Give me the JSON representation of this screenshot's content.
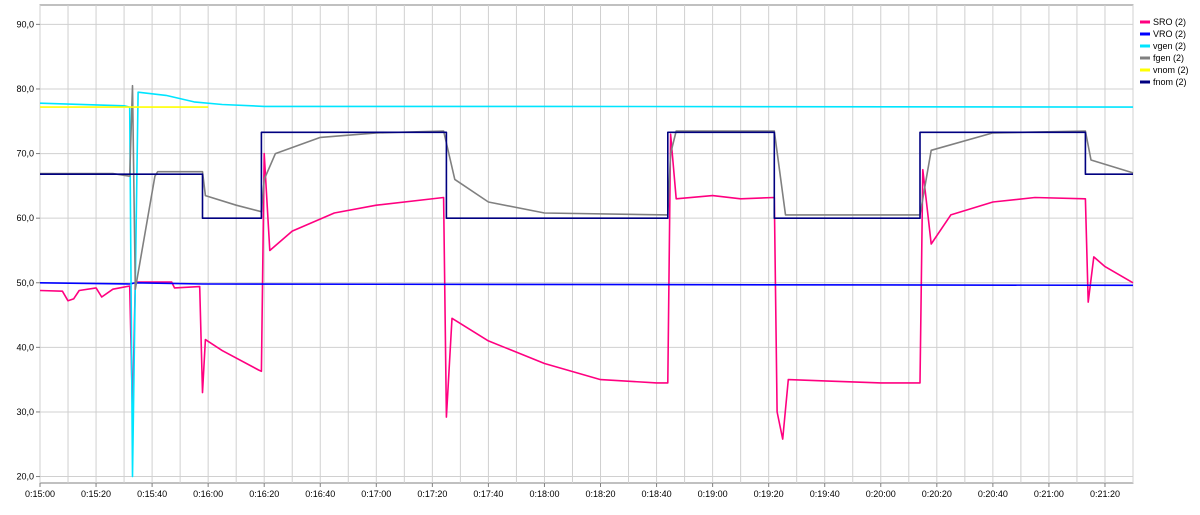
{
  "chart_data": {
    "type": "line",
    "xlim": [
      "0:15:00",
      "0:21:30"
    ],
    "ylim": [
      19,
      93
    ],
    "grid": true,
    "legend_position": "top-right",
    "x_tick_labels": [
      "0:15:00",
      "0:15:20",
      "0:15:40",
      "0:16:00",
      "0:16:20",
      "0:16:40",
      "0:17:00",
      "0:17:20",
      "0:17:40",
      "0:18:00",
      "0:18:20",
      "0:18:40",
      "0:19:00",
      "0:19:20",
      "0:19:40",
      "0:20:00",
      "0:20:20",
      "0:20:40",
      "0:21:00",
      "0:21:20"
    ],
    "y_tick_labels": [
      "20,0",
      "30,0",
      "40,0",
      "50,0",
      "60,0",
      "70,0",
      "80,0",
      "90,0"
    ],
    "series": [
      {
        "name": "SRO (2)",
        "color": "#ff0080",
        "points": [
          [
            "0:15:00",
            48.8
          ],
          [
            "0:15:08",
            48.7
          ],
          [
            "0:15:10",
            47.2
          ],
          [
            "0:15:12",
            47.5
          ],
          [
            "0:15:14",
            48.8
          ],
          [
            "0:15:20",
            49.2
          ],
          [
            "0:15:22",
            47.8
          ],
          [
            "0:15:26",
            49.0
          ],
          [
            "0:15:32",
            49.5
          ],
          [
            "0:15:33",
            30
          ],
          [
            "0:15:34",
            50.1
          ],
          [
            "0:15:47",
            50.1
          ],
          [
            "0:15:48",
            49.2
          ],
          [
            "0:15:57",
            49.4
          ],
          [
            "0:15:58",
            33.0
          ],
          [
            "0:15:59",
            41.2
          ],
          [
            "0:16:05",
            39.5
          ],
          [
            "0:16:18",
            36.5
          ],
          [
            "0:16:19",
            36.3
          ],
          [
            "0:16:20",
            70.0
          ],
          [
            "0:16:22",
            55.0
          ],
          [
            "0:16:30",
            58.0
          ],
          [
            "0:16:45",
            60.8
          ],
          [
            "0:17:00",
            62.0
          ],
          [
            "0:17:24",
            63.2
          ],
          [
            "0:17:25",
            29.2
          ],
          [
            "0:17:27",
            44.5
          ],
          [
            "0:17:40",
            41.0
          ],
          [
            "0:18:00",
            37.5
          ],
          [
            "0:18:20",
            35.0
          ],
          [
            "0:18:40",
            34.5
          ],
          [
            "0:18:44",
            34.5
          ],
          [
            "0:18:45",
            73.0
          ],
          [
            "0:18:47",
            63.0
          ],
          [
            "0:19:00",
            63.5
          ],
          [
            "0:19:10",
            63.0
          ],
          [
            "0:19:22",
            63.2
          ],
          [
            "0:19:23",
            30.0
          ],
          [
            "0:19:25",
            25.8
          ],
          [
            "0:19:27",
            35.0
          ],
          [
            "0:19:40",
            34.8
          ],
          [
            "0:20:00",
            34.5
          ],
          [
            "0:20:14",
            34.5
          ],
          [
            "0:20:15",
            67.5
          ],
          [
            "0:20:18",
            56.0
          ],
          [
            "0:20:25",
            60.5
          ],
          [
            "0:20:40",
            62.5
          ],
          [
            "0:20:55",
            63.2
          ],
          [
            "0:21:13",
            63.0
          ],
          [
            "0:21:14",
            47.0
          ],
          [
            "0:21:16",
            54.0
          ],
          [
            "0:21:20",
            52.5
          ],
          [
            "0:21:30",
            50.0
          ]
        ]
      },
      {
        "name": "VRO (2)",
        "color": "#0000ff",
        "points": [
          [
            "0:15:00",
            50.0
          ],
          [
            "0:15:32",
            49.8
          ],
          [
            "0:15:34",
            50.0
          ],
          [
            "0:15:58",
            49.8
          ],
          [
            "0:21:30",
            49.6
          ]
        ]
      },
      {
        "name": "vgen (2)",
        "color": "#00e5ff",
        "points": [
          [
            "0:15:00",
            77.8
          ],
          [
            "0:15:30",
            77.4
          ],
          [
            "0:15:32",
            77.2
          ],
          [
            "0:15:33",
            20.0
          ],
          [
            "0:15:35",
            79.5
          ],
          [
            "0:15:45",
            79.0
          ],
          [
            "0:15:55",
            78.0
          ],
          [
            "0:16:05",
            77.6
          ],
          [
            "0:16:20",
            77.3
          ],
          [
            "0:17:00",
            77.3
          ],
          [
            "0:18:00",
            77.3
          ],
          [
            "0:21:30",
            77.2
          ]
        ]
      },
      {
        "name": "fgen (2)",
        "color": "#808080",
        "points": [
          [
            "0:15:00",
            66.9
          ],
          [
            "0:15:26",
            66.9
          ],
          [
            "0:15:32",
            66.5
          ],
          [
            "0:15:33",
            80.5
          ],
          [
            "0:15:34",
            49.0
          ],
          [
            "0:15:41",
            66.5
          ],
          [
            "0:15:42",
            67.2
          ],
          [
            "0:15:58",
            67.2
          ],
          [
            "0:15:59",
            63.5
          ],
          [
            "0:16:10",
            62.0
          ],
          [
            "0:16:19",
            61.0
          ],
          [
            "0:16:20",
            66.0
          ],
          [
            "0:16:24",
            70.0
          ],
          [
            "0:16:40",
            72.5
          ],
          [
            "0:17:00",
            73.2
          ],
          [
            "0:17:24",
            73.5
          ],
          [
            "0:17:28",
            66.0
          ],
          [
            "0:17:40",
            62.5
          ],
          [
            "0:18:00",
            60.8
          ],
          [
            "0:18:44",
            60.5
          ],
          [
            "0:18:45",
            70.0
          ],
          [
            "0:18:47",
            73.5
          ],
          [
            "0:19:22",
            73.5
          ],
          [
            "0:19:26",
            60.5
          ],
          [
            "0:20:14",
            60.5
          ],
          [
            "0:20:18",
            70.5
          ],
          [
            "0:20:40",
            73.2
          ],
          [
            "0:21:13",
            73.5
          ],
          [
            "0:21:15",
            69.0
          ],
          [
            "0:21:30",
            67.0
          ]
        ]
      },
      {
        "name": "vnom (2)",
        "color": "#ffff00",
        "points": [
          [
            "0:15:00",
            77.2
          ],
          [
            "0:16:00",
            77.2
          ]
        ]
      },
      {
        "name": "fnom (2)",
        "color": "#000080",
        "points": [
          [
            "0:15:00",
            66.8
          ],
          [
            "0:15:58",
            66.8
          ],
          [
            "0:15:58",
            60.0
          ],
          [
            "0:16:19",
            60.0
          ],
          [
            "0:16:19",
            73.3
          ],
          [
            "0:17:25",
            73.3
          ],
          [
            "0:17:25",
            60.0
          ],
          [
            "0:18:44",
            60.0
          ],
          [
            "0:18:44",
            73.3
          ],
          [
            "0:19:22",
            73.3
          ],
          [
            "0:19:22",
            60.0
          ],
          [
            "0:20:14",
            60.0
          ],
          [
            "0:20:14",
            73.3
          ],
          [
            "0:21:13",
            73.3
          ],
          [
            "0:21:13",
            66.8
          ],
          [
            "0:21:30",
            66.8
          ]
        ]
      }
    ]
  }
}
